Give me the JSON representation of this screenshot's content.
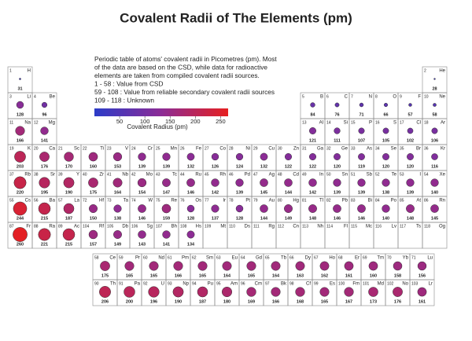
{
  "title": "Covalent Radii of The Elements (pm)",
  "description": [
    "Periodic table of atoms' covalent radii in Picometres (pm). Most",
    "of the data are based on the CSD, while data for radioactive",
    "elements are taken from compiled covalent radii sources.",
    "1 - 58 : Value from CSD",
    "59 - 108 : Value from reliable secondary covalent radii sources",
    "109 - 118 : Unknown"
  ],
  "colorbar": {
    "label": "Covalent Radius (pm)",
    "lim": [
      0,
      265
    ],
    "ticks": [
      50,
      100,
      150,
      200,
      250
    ],
    "low_color": "#2c3cc8",
    "mid_color": "#8c2c96",
    "high_color": "#e62020"
  },
  "primary_label_color": "#222222",
  "secondary_label_color": "#d6246e",
  "atomic_numbers": [
    1,
    2,
    3,
    4,
    5,
    6,
    7,
    8,
    9,
    10,
    11,
    12,
    13,
    14,
    15,
    16,
    17,
    18,
    19,
    20,
    21,
    22,
    23,
    24,
    25,
    26,
    27,
    28,
    29,
    30,
    31,
    32,
    33,
    34,
    35,
    36,
    37,
    38,
    39,
    40,
    41,
    42,
    43,
    44,
    45,
    46,
    47,
    48,
    49,
    50,
    51,
    52,
    53,
    54,
    55,
    56,
    57,
    58,
    59,
    60,
    61,
    62,
    63,
    64,
    65,
    66,
    67,
    68,
    69,
    70,
    71,
    72,
    73,
    74,
    75,
    76,
    77,
    78,
    79,
    80,
    81,
    82,
    83,
    84,
    85,
    86,
    87,
    88,
    89,
    90,
    91,
    92,
    93,
    94,
    95,
    96,
    97,
    98,
    99,
    100,
    101,
    102,
    103,
    104,
    105,
    106,
    107,
    108,
    109,
    110,
    111,
    112,
    113,
    114,
    115,
    116,
    117,
    118
  ],
  "symbols": [
    "H",
    "He",
    "Li",
    "Be",
    "B",
    "C",
    "N",
    "O",
    "F",
    "Ne",
    "Na",
    "Mg",
    "Al",
    "Si",
    "P",
    "S",
    "Cl",
    "Ar",
    "K",
    "Ca",
    "Sc",
    "Ti",
    "V",
    "Cr",
    "Mn",
    "Fe",
    "Co",
    "Ni",
    "Cu",
    "Zn",
    "Ga",
    "Ge",
    "As",
    "Se",
    "Br",
    "Kr",
    "Rb",
    "Sr",
    "Y",
    "Zr",
    "Nb",
    "Mo",
    "Tc",
    "Ru",
    "Rh",
    "Pd",
    "Ag",
    "Cd",
    "In",
    "Sn",
    "Sb",
    "Te",
    "I",
    "Xe",
    "Cs",
    "Ba",
    "La",
    "Ce",
    "Pr",
    "Nd",
    "Pm",
    "Sm",
    "Eu",
    "Gd",
    "Tb",
    "Dy",
    "Ho",
    "Er",
    "Tm",
    "Yb",
    "Lu",
    "Hf",
    "Ta",
    "W",
    "Re",
    "Os",
    "Ir",
    "Pt",
    "Au",
    "Hg",
    "Tl",
    "Pb",
    "Bi",
    "Po",
    "At",
    "Rn",
    "Fr",
    "Ra",
    "Ac",
    "Th",
    "Pa",
    "U",
    "Np",
    "Pu",
    "Am",
    "Cm",
    "Bk",
    "Cf",
    "Es",
    "Fm",
    "Md",
    "No",
    "Lr",
    "Rf",
    "Db",
    "Sg",
    "Bh",
    "Hs",
    "Mt",
    "Ds",
    "Rg",
    "Cn",
    "Nh",
    "Fl",
    "Mc",
    "Lv",
    "Ts",
    "Og"
  ],
  "radii": [
    31,
    28,
    128,
    96,
    84,
    76,
    71,
    66,
    57,
    58,
    166,
    141,
    121,
    111,
    107,
    105,
    102,
    106,
    203,
    176,
    170,
    160,
    153,
    139,
    139,
    132,
    126,
    124,
    132,
    122,
    122,
    120,
    119,
    120,
    120,
    116,
    220,
    195,
    190,
    175,
    164,
    154,
    147,
    146,
    142,
    139,
    145,
    144,
    142,
    139,
    139,
    138,
    139,
    140,
    244,
    215,
    187,
    175,
    165,
    165,
    166,
    165,
    164,
    165,
    164,
    163,
    162,
    161,
    160,
    158,
    156,
    150,
    138,
    146,
    159,
    128,
    137,
    128,
    144,
    149,
    148,
    146,
    146,
    140,
    148,
    145,
    260,
    221,
    215,
    206,
    200,
    196,
    190,
    187,
    180,
    169,
    166,
    168,
    165,
    167,
    173,
    176,
    161,
    157,
    149,
    143,
    141,
    134,
    null,
    null,
    null,
    null,
    null,
    null,
    null,
    null,
    null,
    null
  ]
}
